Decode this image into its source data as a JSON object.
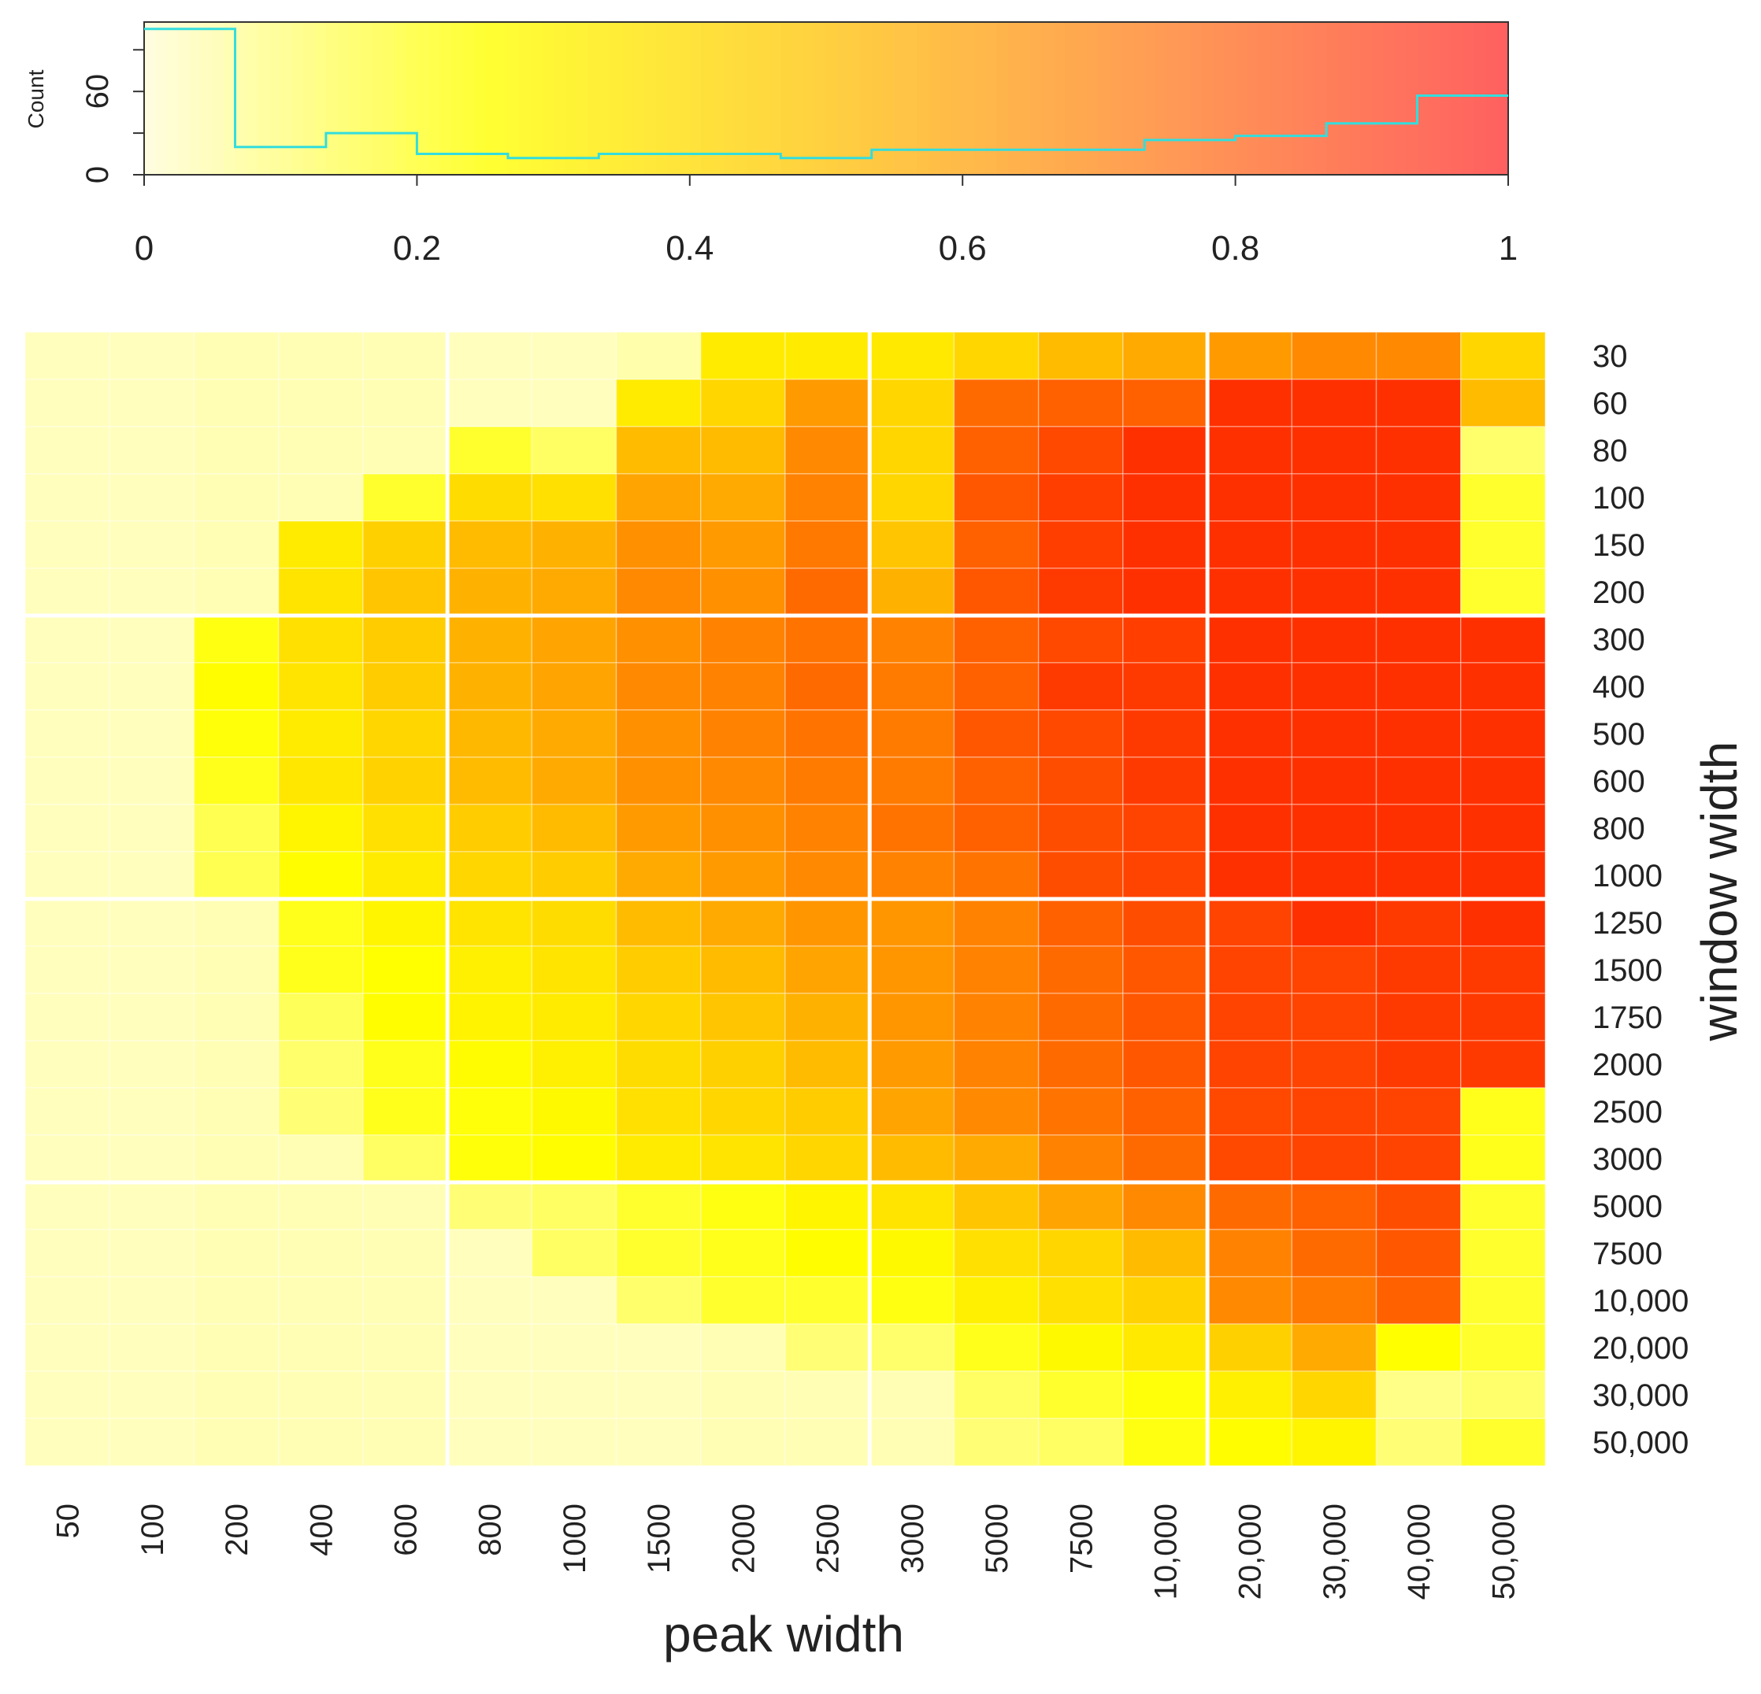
{
  "chart_data": [
    {
      "type": "histogram",
      "role": "color-key",
      "ylabel": "Count",
      "xlim": [
        0,
        1
      ],
      "ylim": [
        0,
        110
      ],
      "x_ticks": [
        "0",
        "0.2",
        "0.4",
        "0.6",
        "0.8",
        "1"
      ],
      "y_ticks": [
        "0",
        "60"
      ],
      "bin_edges": [
        0,
        0.0667,
        0.1333,
        0.2,
        0.2667,
        0.3333,
        0.4,
        0.4667,
        0.5333,
        0.6,
        0.6667,
        0.7333,
        0.8,
        0.8667,
        0.9333,
        1
      ],
      "counts": [
        105,
        20,
        30,
        15,
        12,
        15,
        15,
        12,
        18,
        18,
        18,
        25,
        28,
        37,
        57
      ],
      "line_color": "#33dddd",
      "colorscale": [
        "#fffde0",
        "#ffff33",
        "#ffd040",
        "#ff9a55",
        "#ff6060"
      ]
    },
    {
      "type": "heatmap",
      "xlabel": "peak width",
      "ylabel": "window width",
      "x_categories": [
        "50",
        "100",
        "200",
        "400",
        "600",
        "800",
        "1000",
        "1500",
        "2000",
        "2500",
        "3000",
        "5000",
        "7500",
        "10,000",
        "20,000",
        "30,000",
        "40,000",
        "50,000"
      ],
      "y_categories": [
        "30",
        "60",
        "80",
        "100",
        "150",
        "200",
        "300",
        "400",
        "500",
        "600",
        "800",
        "1000",
        "1250",
        "1500",
        "1750",
        "2000",
        "2500",
        "3000",
        "5000",
        "7500",
        "10,000",
        "20,000",
        "30,000",
        "50,000"
      ],
      "value_range": [
        0,
        1
      ],
      "values": [
        [
          0.04,
          0.04,
          0.05,
          0.05,
          0.05,
          0.04,
          0.04,
          0.06,
          0.35,
          0.35,
          0.36,
          0.45,
          0.55,
          0.6,
          0.65,
          0.7,
          0.7,
          0.45
        ],
        [
          0.04,
          0.04,
          0.05,
          0.05,
          0.05,
          0.04,
          0.04,
          0.35,
          0.45,
          0.65,
          0.45,
          0.78,
          0.8,
          0.8,
          0.9,
          0.9,
          0.9,
          0.55
        ],
        [
          0.04,
          0.04,
          0.05,
          0.05,
          0.05,
          0.2,
          0.14,
          0.55,
          0.55,
          0.7,
          0.45,
          0.8,
          0.85,
          0.9,
          0.9,
          0.9,
          0.9,
          0.13
        ],
        [
          0.04,
          0.04,
          0.05,
          0.05,
          0.2,
          0.42,
          0.4,
          0.62,
          0.6,
          0.72,
          0.45,
          0.82,
          0.87,
          0.9,
          0.9,
          0.9,
          0.9,
          0.2
        ],
        [
          0.04,
          0.04,
          0.05,
          0.35,
          0.48,
          0.55,
          0.58,
          0.68,
          0.65,
          0.75,
          0.52,
          0.8,
          0.87,
          0.9,
          0.9,
          0.9,
          0.9,
          0.2
        ],
        [
          0.04,
          0.04,
          0.05,
          0.38,
          0.52,
          0.58,
          0.6,
          0.7,
          0.68,
          0.78,
          0.58,
          0.82,
          0.88,
          0.9,
          0.9,
          0.9,
          0.9,
          0.2
        ],
        [
          0.04,
          0.04,
          0.23,
          0.4,
          0.5,
          0.58,
          0.62,
          0.68,
          0.72,
          0.76,
          0.72,
          0.8,
          0.85,
          0.87,
          0.9,
          0.9,
          0.9,
          0.9
        ],
        [
          0.04,
          0.04,
          0.26,
          0.38,
          0.5,
          0.58,
          0.62,
          0.7,
          0.72,
          0.78,
          0.74,
          0.8,
          0.88,
          0.88,
          0.9,
          0.9,
          0.9,
          0.9
        ],
        [
          0.04,
          0.04,
          0.24,
          0.35,
          0.45,
          0.56,
          0.6,
          0.68,
          0.72,
          0.76,
          0.74,
          0.82,
          0.85,
          0.88,
          0.9,
          0.9,
          0.9,
          0.9
        ],
        [
          0.04,
          0.04,
          0.22,
          0.37,
          0.47,
          0.55,
          0.6,
          0.68,
          0.7,
          0.74,
          0.74,
          0.8,
          0.84,
          0.88,
          0.9,
          0.9,
          0.9,
          0.9
        ],
        [
          0.04,
          0.04,
          0.16,
          0.3,
          0.4,
          0.5,
          0.55,
          0.65,
          0.68,
          0.72,
          0.76,
          0.8,
          0.84,
          0.86,
          0.9,
          0.9,
          0.9,
          0.9
        ],
        [
          0.04,
          0.04,
          0.16,
          0.26,
          0.35,
          0.45,
          0.5,
          0.6,
          0.65,
          0.7,
          0.72,
          0.76,
          0.84,
          0.86,
          0.9,
          0.9,
          0.9,
          0.9
        ],
        [
          0.04,
          0.04,
          0.05,
          0.22,
          0.3,
          0.38,
          0.42,
          0.55,
          0.6,
          0.66,
          0.66,
          0.72,
          0.8,
          0.84,
          0.86,
          0.9,
          0.88,
          0.9
        ],
        [
          0.04,
          0.04,
          0.05,
          0.22,
          0.25,
          0.33,
          0.38,
          0.5,
          0.55,
          0.62,
          0.66,
          0.72,
          0.78,
          0.82,
          0.86,
          0.86,
          0.88,
          0.88
        ],
        [
          0.04,
          0.04,
          0.05,
          0.15,
          0.26,
          0.31,
          0.35,
          0.45,
          0.52,
          0.58,
          0.66,
          0.72,
          0.78,
          0.82,
          0.86,
          0.86,
          0.88,
          0.88
        ],
        [
          0.04,
          0.04,
          0.05,
          0.13,
          0.22,
          0.27,
          0.33,
          0.42,
          0.48,
          0.55,
          0.65,
          0.72,
          0.78,
          0.82,
          0.86,
          0.86,
          0.88,
          0.88
        ],
        [
          0.04,
          0.04,
          0.05,
          0.12,
          0.22,
          0.24,
          0.28,
          0.4,
          0.45,
          0.5,
          0.62,
          0.7,
          0.76,
          0.8,
          0.85,
          0.86,
          0.86,
          0.22
        ],
        [
          0.04,
          0.04,
          0.05,
          0.05,
          0.14,
          0.24,
          0.26,
          0.35,
          0.38,
          0.45,
          0.55,
          0.6,
          0.72,
          0.78,
          0.85,
          0.86,
          0.86,
          0.22
        ],
        [
          0.04,
          0.04,
          0.05,
          0.05,
          0.05,
          0.12,
          0.14,
          0.2,
          0.23,
          0.3,
          0.38,
          0.52,
          0.62,
          0.7,
          0.78,
          0.8,
          0.84,
          0.2
        ],
        [
          0.04,
          0.04,
          0.05,
          0.05,
          0.05,
          0.04,
          0.14,
          0.2,
          0.22,
          0.26,
          0.28,
          0.4,
          0.45,
          0.55,
          0.72,
          0.78,
          0.82,
          0.2
        ],
        [
          0.04,
          0.04,
          0.05,
          0.05,
          0.05,
          0.04,
          0.04,
          0.13,
          0.2,
          0.2,
          0.23,
          0.33,
          0.4,
          0.47,
          0.7,
          0.75,
          0.8,
          0.2
        ],
        [
          0.04,
          0.04,
          0.05,
          0.05,
          0.05,
          0.04,
          0.04,
          0.04,
          0.05,
          0.12,
          0.13,
          0.22,
          0.28,
          0.36,
          0.48,
          0.6,
          0.25,
          0.2
        ],
        [
          0.04,
          0.04,
          0.05,
          0.05,
          0.05,
          0.04,
          0.04,
          0.04,
          0.05,
          0.05,
          0.05,
          0.14,
          0.2,
          0.24,
          0.33,
          0.45,
          0.1,
          0.13
        ],
        [
          0.04,
          0.04,
          0.05,
          0.05,
          0.05,
          0.04,
          0.04,
          0.04,
          0.05,
          0.05,
          0.05,
          0.12,
          0.14,
          0.23,
          0.26,
          0.3,
          0.12,
          0.2
        ]
      ],
      "separator_color": "#ffffff"
    }
  ]
}
